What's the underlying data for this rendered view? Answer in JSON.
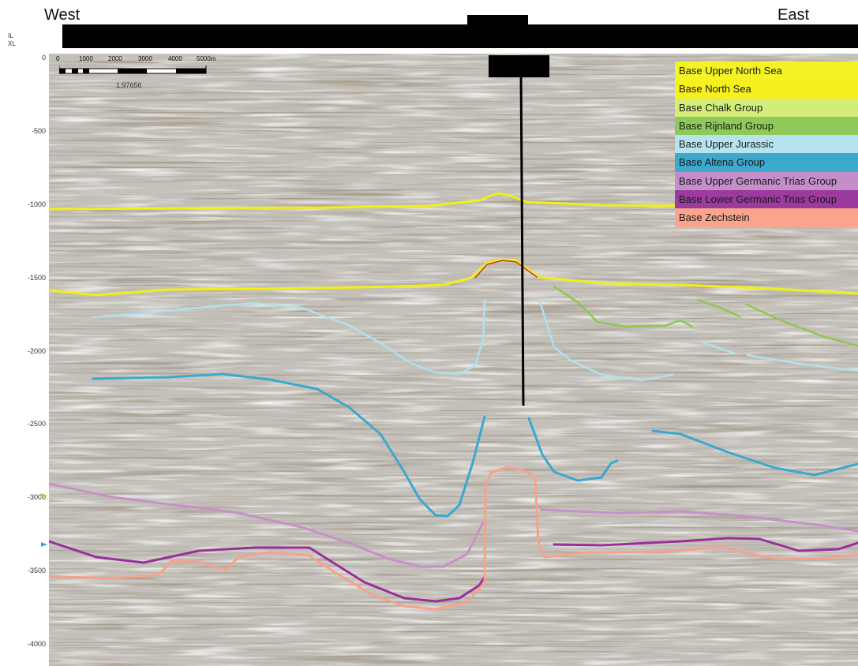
{
  "header": {
    "west_label": "West",
    "east_label": "East",
    "il_label": "IL",
    "xl_label": "XL"
  },
  "y_axis": {
    "ticks": [
      "0",
      "-500",
      "-1000",
      "-1500",
      "-2000",
      "-2500",
      "-3000",
      "-3500",
      "-4000"
    ]
  },
  "scale_bar": {
    "ticks": [
      "0",
      "1000",
      "2000",
      "3000",
      "4000",
      "5000m"
    ],
    "ratio": "1:97656"
  },
  "legend": {
    "items": [
      {
        "label": "Base Upper North Sea",
        "color": "#f4f424"
      },
      {
        "label": "Base North Sea",
        "color": "#f7ef1e"
      },
      {
        "label": "Base Chalk Group",
        "color": "#d5ec79"
      },
      {
        "label": "Base Rijnland Group",
        "color": "#8fc95a"
      },
      {
        "label": "Base Upper Jurassic",
        "color": "#b6e3ef"
      },
      {
        "label": "Base Altena Group",
        "color": "#3ca9cd"
      },
      {
        "label": "Base Upper Germanic Trias Group",
        "color": "#c48ec8"
      },
      {
        "label": "Base Lower Germanic Trias Group",
        "color": "#9c3a9e"
      },
      {
        "label": "Base Zechstein",
        "color": "#f9a58e"
      }
    ]
  },
  "colors": {
    "horizon_north_sea": "#f2ee18",
    "horizon_rijnland": "#8cc850",
    "horizon_upper_jurassic": "#b0e0ef",
    "horizon_altena": "#3aa8cf",
    "horizon_upper_trias": "#c890c8",
    "horizon_lower_trias": "#9a2f9c",
    "horizon_zechstein": "#f6a28c",
    "well": "#000000"
  }
}
